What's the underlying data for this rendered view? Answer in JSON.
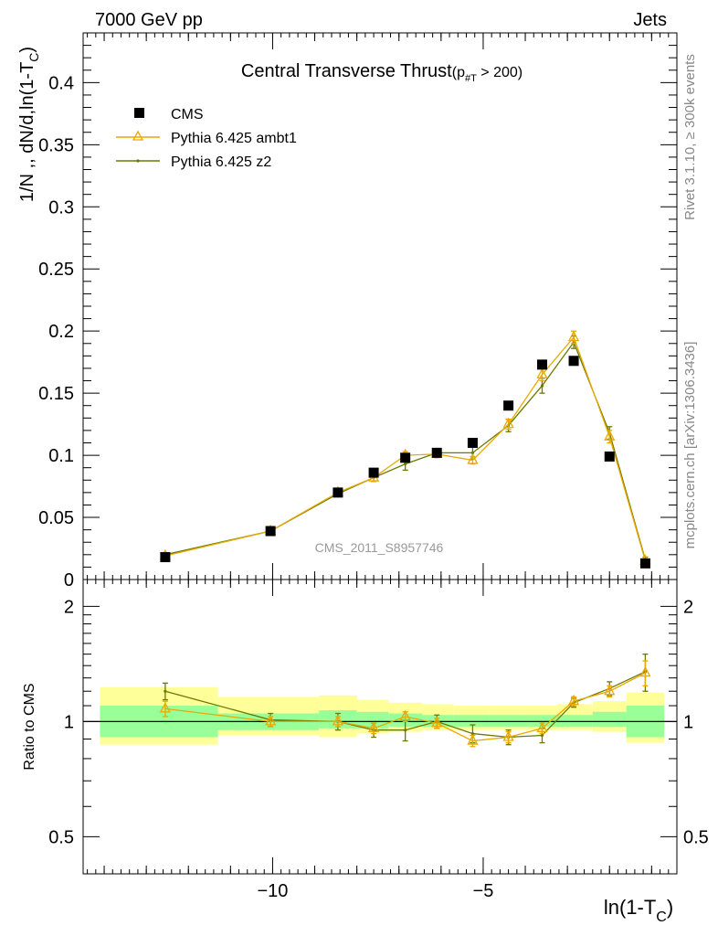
{
  "header": {
    "energy_label": "7000 GeV pp",
    "process_label": "Jets",
    "rivet_label": "Rivet 3.1.10, ≥ 300k events",
    "mcplots_label": "mcplots.cern.ch [arXiv:1306.3436]",
    "analysis_id": "CMS_2011_S8957746"
  },
  "colors": {
    "cms": "#000000",
    "ambt1": "#e8a900",
    "z2": "#6b7a00",
    "band_inner": "#99ff99",
    "band_outer": "#ffff99"
  },
  "chart_data": [
    {
      "type": "line",
      "title": "Central Transverse Thrust",
      "title_suffix": "(p",
      "title_sub": "#T",
      "title_tail": " > 200)",
      "ylabel": "1/N ,, dN/d,ln(1-T",
      "ylabel_sub": "C",
      "ylabel_tail": ")",
      "xlim": [
        -14.5,
        -0.4
      ],
      "ylim": [
        0,
        0.44
      ],
      "yticks": [
        0,
        0.05,
        0.1,
        0.15,
        0.2,
        0.25,
        0.3,
        0.35,
        0.4
      ],
      "ytick_labels": [
        "0",
        "0.05",
        "0.1",
        "0.15",
        "0.2",
        "0.25",
        "0.3",
        "0.35",
        "0.4"
      ],
      "legend_position": "top-left",
      "x": [
        -12.55,
        -10.05,
        -8.45,
        -7.6,
        -6.85,
        -6.1,
        -5.25,
        -4.4,
        -3.6,
        -2.85,
        -2.0,
        -1.15
      ],
      "series": [
        {
          "name": "CMS",
          "marker": "square",
          "values": [
            0.018,
            0.039,
            0.07,
            0.086,
            0.098,
            0.102,
            0.11,
            0.14,
            0.173,
            0.176,
            0.099,
            0.013
          ],
          "errors": [
            0.001,
            0.001,
            0.002,
            0.002,
            0.002,
            0.002,
            0.002,
            0.003,
            0.003,
            0.003,
            0.002,
            0.001
          ]
        },
        {
          "name": "Pythia 6.425 ambt1",
          "marker": "triangle",
          "values": [
            0.019,
            0.039,
            0.07,
            0.082,
            0.1,
            0.101,
            0.096,
            0.125,
            0.165,
            0.195,
            0.115,
            0.015
          ],
          "errors": [
            0.001,
            0.001,
            0.002,
            0.003,
            0.003,
            0.003,
            0.003,
            0.004,
            0.005,
            0.005,
            0.005,
            0.001
          ]
        },
        {
          "name": "Pythia 6.425 z2",
          "marker": "dot",
          "values": [
            0.02,
            0.039,
            0.069,
            0.082,
            0.093,
            0.102,
            0.102,
            0.124,
            0.156,
            0.191,
            0.118,
            0.016
          ],
          "errors": [
            0.001,
            0.001,
            0.002,
            0.003,
            0.005,
            0.003,
            0.005,
            0.005,
            0.006,
            0.005,
            0.005,
            0.002
          ]
        }
      ]
    },
    {
      "type": "line",
      "ylabel": "Ratio to CMS",
      "xlabel": "ln(1-T",
      "xlabel_sub": "C",
      "xlabel_tail": ")",
      "xlim": [
        -14.5,
        -0.4
      ],
      "ylim": [
        0.4,
        2.35
      ],
      "yscale": "log",
      "yticks": [
        0.5,
        1,
        2
      ],
      "ytick_labels": [
        "0.5",
        "1",
        "2"
      ],
      "xticks": [
        -10,
        -5
      ],
      "xtick_labels": [
        "−10",
        "−5"
      ],
      "reference_line": 1,
      "bin_edges": [
        -14.1,
        -11.3,
        -8.9,
        -8.0,
        -7.25,
        -6.45,
        -5.7,
        -4.85,
        -4.0,
        -3.25,
        -2.4,
        -1.6,
        -0.7
      ],
      "band_inner_lo": [
        0.91,
        0.95,
        0.96,
        0.96,
        0.97,
        0.97,
        0.97,
        0.97,
        0.97,
        0.97,
        0.97,
        0.91
      ],
      "band_inner_hi": [
        1.1,
        1.05,
        1.07,
        1.06,
        1.05,
        1.04,
        1.04,
        1.04,
        1.04,
        1.04,
        1.06,
        1.1
      ],
      "band_outer_lo": [
        0.87,
        0.92,
        0.91,
        0.93,
        0.94,
        0.95,
        0.95,
        0.95,
        0.95,
        0.95,
        0.94,
        0.88
      ],
      "band_outer_hi": [
        1.23,
        1.16,
        1.17,
        1.14,
        1.12,
        1.11,
        1.1,
        1.1,
        1.1,
        1.11,
        1.13,
        1.19
      ],
      "x": [
        -12.55,
        -10.05,
        -8.45,
        -7.6,
        -6.85,
        -6.1,
        -5.25,
        -4.4,
        -3.6,
        -2.85,
        -2.0,
        -1.15
      ],
      "series": [
        {
          "name": "Pythia 6.425 ambt1",
          "marker": "triangle",
          "values": [
            1.08,
            1.0,
            1.0,
            0.96,
            1.03,
            0.99,
            0.89,
            0.91,
            0.96,
            1.13,
            1.2,
            1.34
          ],
          "errors": [
            0.05,
            0.03,
            0.03,
            0.03,
            0.03,
            0.03,
            0.03,
            0.03,
            0.03,
            0.03,
            0.04,
            0.1
          ]
        },
        {
          "name": "Pythia 6.425 z2",
          "marker": "dot",
          "values": [
            1.2,
            1.01,
            1.0,
            0.95,
            0.95,
            1.0,
            0.93,
            0.91,
            0.92,
            1.12,
            1.22,
            1.35
          ],
          "errors": [
            0.06,
            0.04,
            0.05,
            0.04,
            0.06,
            0.04,
            0.05,
            0.04,
            0.04,
            0.03,
            0.05,
            0.15
          ]
        }
      ]
    }
  ]
}
